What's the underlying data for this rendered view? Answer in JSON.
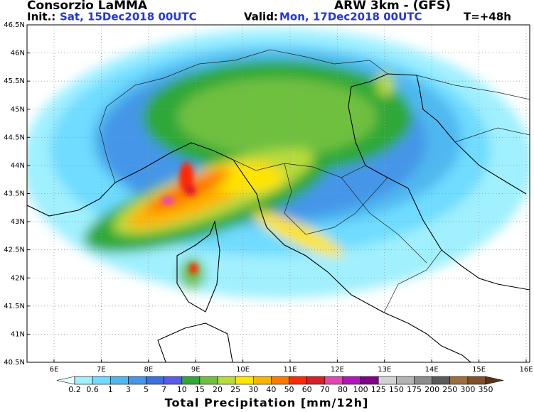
{
  "header": {
    "title": "Consorzio LaMMA",
    "model": "ARW 3km - (GFS)",
    "init_label": "Init.:",
    "init_time": "Sat, 15Dec2018 00UTC",
    "valid_label": "Valid:",
    "valid_time": "Mon, 17Dec2018 00UTC",
    "lead_time": "T=+48h"
  },
  "map": {
    "lat_labels": [
      "46.5N",
      "46N",
      "45.5N",
      "45N",
      "44.5N",
      "44N",
      "43.5N",
      "43N",
      "42.5N",
      "42N",
      "41.5N",
      "41N",
      "40.5N"
    ],
    "lon_labels": [
      "6E",
      "7E",
      "8E",
      "9E",
      "10E",
      "11E",
      "12E",
      "13E",
      "14E",
      "15E",
      "16E"
    ]
  },
  "legend": {
    "title": "Total Precipitation [mm/12h]",
    "labels": [
      0.2,
      0.6,
      1,
      3,
      5,
      7,
      10,
      15,
      20,
      25,
      30,
      40,
      50,
      60,
      70,
      80,
      100,
      125,
      150,
      175,
      200,
      250,
      300,
      350
    ],
    "colors": [
      "#e6ffff",
      "#a0f0ff",
      "#70dcff",
      "#50b8f0",
      "#4496e8",
      "#3a70e0",
      "#5a5af0",
      "#2ea838",
      "#70c040",
      "#b8dc3c",
      "#ffe400",
      "#ffb400",
      "#ff7800",
      "#ff2800",
      "#d81e28",
      "#e646b4",
      "#b414be",
      "#82008c",
      "#d2d2d2",
      "#b4b4b4",
      "#8c8c8c",
      "#5a5a5a",
      "#a06e3c",
      "#825028",
      "#5a3214"
    ]
  }
}
